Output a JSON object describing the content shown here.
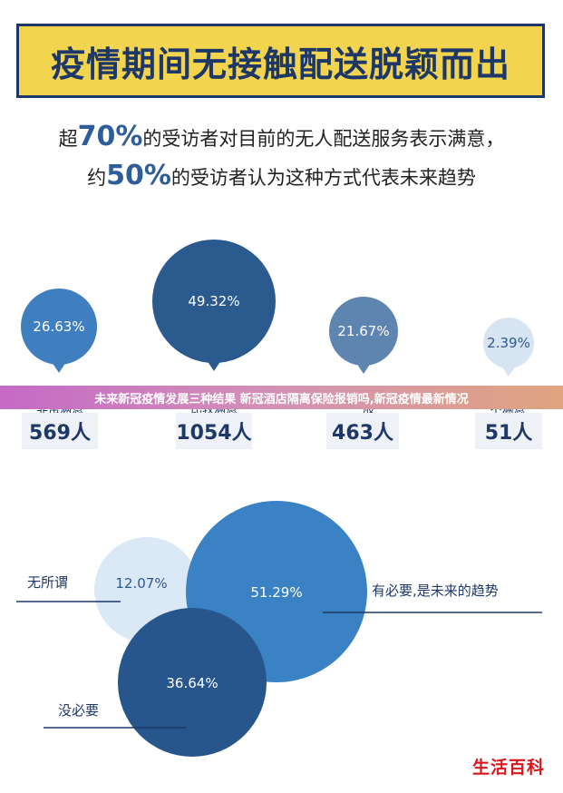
{
  "title": "疫情期间无接触配送脱颖而出",
  "subtitle": {
    "line1_prefix": "超",
    "line1_pct": "70%",
    "line1_suffix": "的受访者对目前的无人配送服务表示满意，",
    "line2_prefix": "约",
    "line2_pct": "50%",
    "line2_suffix": "的受访者认为这种方式代表未来趋势"
  },
  "banner": "未来新冠疫情发展三种结果 新冠酒店隔离保险报销吗,新冠疫情最新情况",
  "watermark": "生活百科",
  "colors": {
    "navy": "#1d3868",
    "yellow": "#f3d44f",
    "very_satisfied": "#3f7fc0",
    "satisfied": "#2b5a8e",
    "neutral": "#5e84b0",
    "dissatisfied": "#d7e4f1",
    "venn_trend": "#3b82c4",
    "venn_none": "#dbe8f5",
    "venn_no": "#27568c"
  },
  "chart_data": [
    {
      "type": "bubble",
      "categories": [
        "非常满意",
        "比较满意",
        "一般",
        "不满意"
      ],
      "percent_labels": [
        "26.63%",
        "49.32%",
        "21.67%",
        "2.39%"
      ],
      "values": [
        26.63,
        49.32,
        21.67,
        2.39
      ],
      "counts": [
        "569人",
        "1054人",
        "463人",
        "51人"
      ],
      "count_values": [
        569,
        1054,
        463,
        51
      ]
    },
    {
      "type": "venn",
      "categories": [
        "有必要,是未来的趋势",
        "无所谓",
        "没必要"
      ],
      "percent_labels": [
        "51.29%",
        "12.07%",
        "36.64%"
      ],
      "values": [
        51.29,
        12.07,
        36.64
      ]
    }
  ]
}
